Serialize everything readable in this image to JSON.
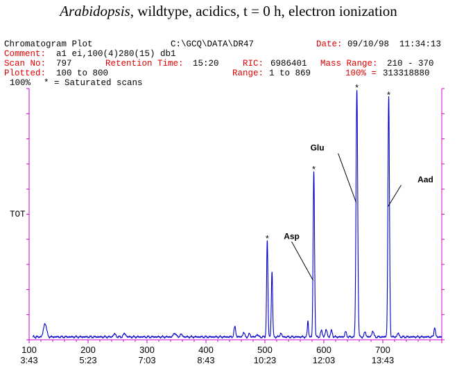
{
  "title": {
    "genus": "Arabidopsis",
    "rest": ", wildtype, acidics, t = 0 h, electron ionization"
  },
  "header": {
    "plot_name": "Chromatogram Plot",
    "path": "C:\\GCQ\\DATA\\DR47",
    "date_label": "Date:",
    "date_value": "09/10/98  11:34:13",
    "comment_label": "Comment:",
    "comment_value": "a1 ei,100(4)280(15) db1",
    "scan_label": "Scan No:",
    "scan_value": "797",
    "rt_label": "Retention Time:",
    "rt_value": "15:20",
    "ric_label": "RIC:",
    "ric_value": "6986401",
    "mass_label": "Mass Range:",
    "mass_value": "210 - 370",
    "plotted_label": "Plotted:",
    "plotted_value": "100 to 800",
    "range_label": "Range:",
    "range_value": "1 to 869",
    "pct_label": "100% =",
    "pct_value": "313318880",
    "scale_label": "100%",
    "saturated_note": "* = Saturated scans",
    "axis_label": "TOT"
  },
  "chart_data": {
    "type": "line",
    "color": "#0000cc",
    "frame_color": "#cc00cc",
    "xlim": [
      100,
      800
    ],
    "ylim": [
      0,
      100
    ],
    "x_ticks": [
      {
        "scan": 100,
        "time": "3:43"
      },
      {
        "scan": 200,
        "time": "5:23"
      },
      {
        "scan": 300,
        "time": "7:03"
      },
      {
        "scan": 400,
        "time": "8:43"
      },
      {
        "scan": 500,
        "time": "10:23"
      },
      {
        "scan": 600,
        "time": "12:03"
      },
      {
        "scan": 700,
        "time": "13:43"
      }
    ],
    "peaks": [
      {
        "scan": 127,
        "height": 5.5,
        "width": 2.5
      },
      {
        "scan": 245,
        "height": 1.2,
        "width": 2
      },
      {
        "scan": 262,
        "height": 1.4,
        "width": 2
      },
      {
        "scan": 347,
        "height": 1.6,
        "width": 2
      },
      {
        "scan": 358,
        "height": 1.0,
        "width": 2
      },
      {
        "scan": 449,
        "height": 4.0,
        "width": 1.5
      },
      {
        "scan": 464,
        "height": 1.8,
        "width": 1.5
      },
      {
        "scan": 474,
        "height": 1.2,
        "width": 1.5
      },
      {
        "scan": 487,
        "height": 1.0,
        "width": 1.5
      },
      {
        "scan": 504,
        "height": 39.0,
        "width": 1.1,
        "saturated": true
      },
      {
        "scan": 512,
        "height": 26.5,
        "width": 1.1
      },
      {
        "scan": 527,
        "height": 1.5,
        "width": 1.5
      },
      {
        "scan": 573,
        "height": 6.5,
        "width": 1.0
      },
      {
        "scan": 583,
        "height": 67.0,
        "width": 1.2,
        "saturated": true,
        "label": "Asp"
      },
      {
        "scan": 596,
        "height": 2.5,
        "width": 1.5
      },
      {
        "scan": 604,
        "height": 3.0,
        "width": 1.5
      },
      {
        "scan": 613,
        "height": 2.5,
        "width": 1.5
      },
      {
        "scan": 637,
        "height": 2.0,
        "width": 1.5
      },
      {
        "scan": 656,
        "height": 100.0,
        "width": 1.4,
        "saturated": true,
        "label": "Glu"
      },
      {
        "scan": 670,
        "height": 2.0,
        "width": 1.5
      },
      {
        "scan": 683,
        "height": 2.5,
        "width": 1.5
      },
      {
        "scan": 710,
        "height": 97.0,
        "width": 1.3,
        "saturated": true,
        "label": "Aad"
      },
      {
        "scan": 726,
        "height": 1.5,
        "width": 1.5
      },
      {
        "scan": 788,
        "height": 4.0,
        "width": 1.2
      }
    ],
    "labels": [
      "Asp",
      "Glu",
      "Aad"
    ]
  }
}
